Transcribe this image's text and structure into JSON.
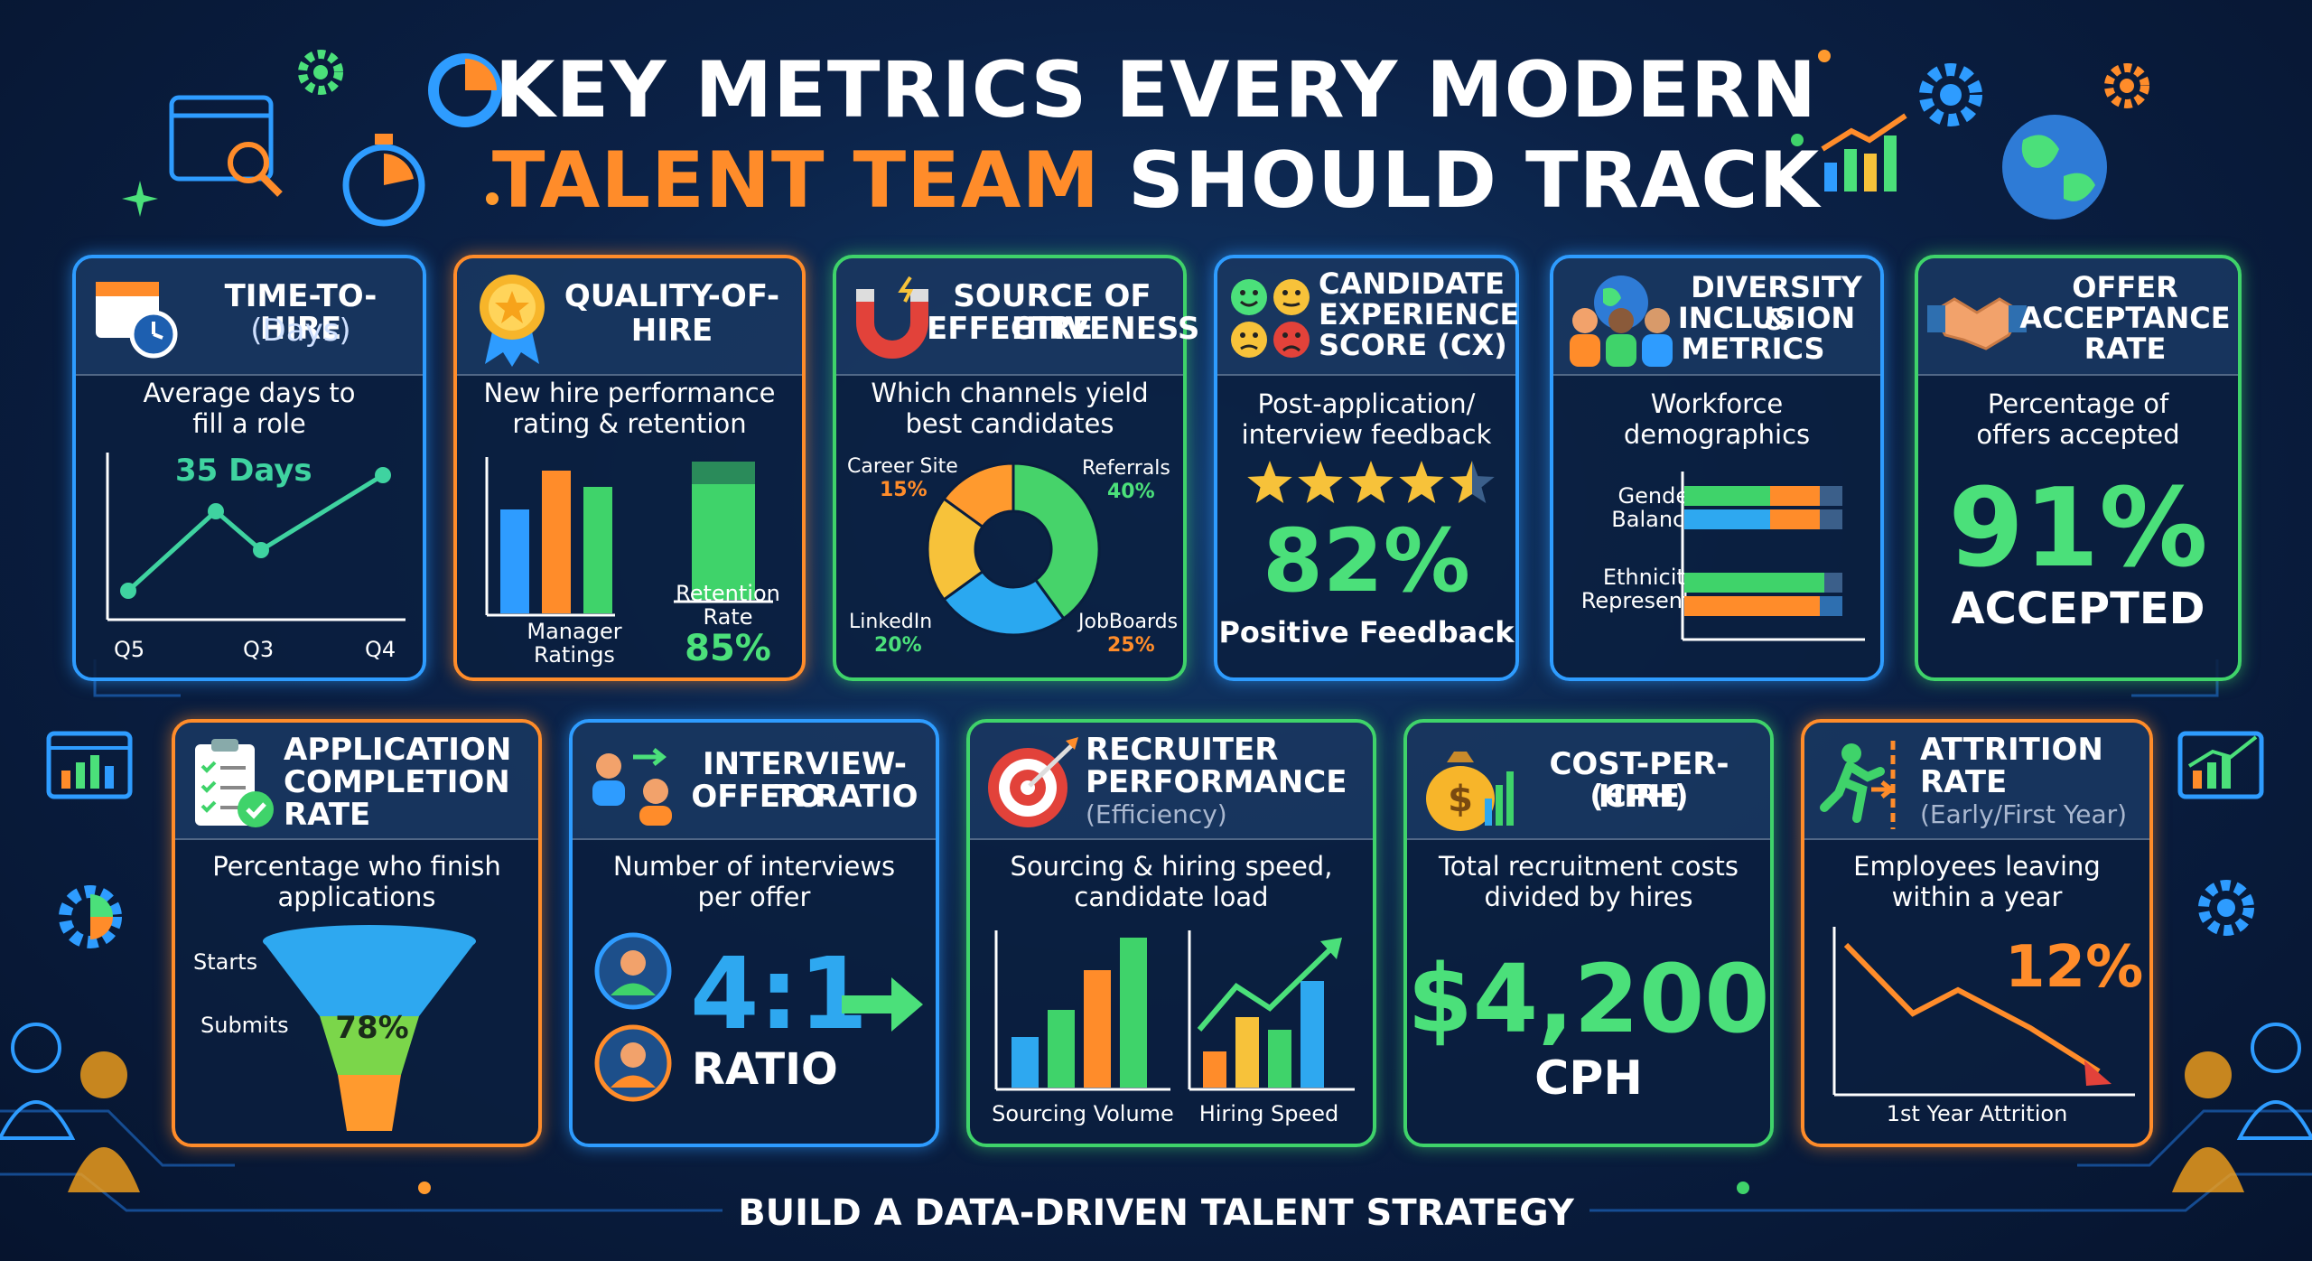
{
  "title": {
    "line1": "KEY METRICS EVERY MODERN",
    "line2_highlight": "TALENT TEAM",
    "line2_rest": "SHOULD TRACK"
  },
  "footer": "BUILD A DATA-DRIVEN TALENT STRATEGY",
  "colors": {
    "blue": "#2e9cff",
    "orange": "#ff8c2a",
    "green": "#3fd36a",
    "bg": "#0b2146"
  },
  "cards": {
    "time_to_hire": {
      "title_l1": "TIME-TO-HIRE",
      "title_l2": "(Days)",
      "desc_l1": "Average days to",
      "desc_l2": "fill a role",
      "callout": "35 Days",
      "x_labels": [
        "Q5",
        "Q3",
        "Q4"
      ],
      "icon": "calendar-clock-icon"
    },
    "quality_of_hire": {
      "title_l1": "QUALITY-OF-",
      "title_l2": "HIRE",
      "desc_l1": "New hire performance",
      "desc_l2": "rating & retention",
      "bar_label_l1": "Manager",
      "bar_label_l2": "Ratings",
      "retention_l1": "Retention",
      "retention_l2": "Rate",
      "retention_value": "85%",
      "icon": "award-medal-icon"
    },
    "source_of_hire": {
      "title_l1": "SOURCE OF HIRE",
      "title_l2": "EFFECTIVENESS",
      "desc_l1": "Which channels yield",
      "desc_l2": "best candidates",
      "icon": "magnet-icon",
      "slices": [
        {
          "name": "Career Site",
          "value": "15%",
          "color": "#ff9a2e"
        },
        {
          "name": "Referrals",
          "value": "40%",
          "color": "#46d36a"
        },
        {
          "name": "JobBoards",
          "value": "25%",
          "color": "#2aa8f0"
        },
        {
          "name": "LinkedIn",
          "value": "20%",
          "color": "#f7c23a"
        }
      ]
    },
    "candidate_experience": {
      "title_l1": "CANDIDATE",
      "title_l2": "EXPERIENCE",
      "title_l3": "SCORE (CX)",
      "desc_l1": "Post-application/",
      "desc_l2": "interview feedback",
      "stars": 4.5,
      "value": "82%",
      "label": "Positive Feedback",
      "icon": "emoji-faces-icon"
    },
    "diversity": {
      "title_l1": "DIVERSITY &",
      "title_l2": "INCLUSION",
      "title_l3": "METRICS",
      "desc_l1": "Workforce",
      "desc_l2": "demographics",
      "row1_l1": "Gender",
      "row1_l2": "Balance",
      "row2_l1": "Ethnicity",
      "row2_l2": "Represent.",
      "icon": "people-globe-icon"
    },
    "offer_acceptance": {
      "title_l1": "OFFER",
      "title_l2": "ACCEPTANCE",
      "title_l3": "RATE",
      "desc_l1": "Percentage of",
      "desc_l2": "offers accepted",
      "value": "91%",
      "label": "ACCEPTED",
      "icon": "handshake-icon"
    },
    "application_completion": {
      "title_l1": "APPLICATION",
      "title_l2": "COMPLETION",
      "title_l3": "RATE",
      "desc_l1": "Percentage who finish",
      "desc_l2": "applications",
      "starts": "Starts",
      "submits": "Submits",
      "value": "78%",
      "icon": "checklist-icon"
    },
    "interview_offer": {
      "title_l1": "INTERVIEW-TO-",
      "title_l2": "OFFER RATIO",
      "desc_l1": "Number of interviews",
      "desc_l2": "per offer",
      "value": "4:1",
      "label": "RATIO",
      "icon": "people-transfer-icon"
    },
    "recruiter_performance": {
      "title_l1": "RECRUITER",
      "title_l2": "PERFORMANCE",
      "title_l3": "(Efficiency)",
      "desc_l1": "Sourcing & hiring speed,",
      "desc_l2": "candidate load",
      "chart1": "Sourcing Volume",
      "chart2": "Hiring Speed",
      "icon": "target-icon"
    },
    "cost_per_hire": {
      "title_l1": "COST-PER-HIRE",
      "title_l2": "(CPH)",
      "desc_l1": "Total recruitment costs",
      "desc_l2": "divided by hires",
      "value": "$4,200",
      "label": "CPH",
      "icon": "money-bag-icon"
    },
    "attrition": {
      "title_l1": "ATTRITION",
      "title_l2": "RATE",
      "title_l3": "(Early/First Year)",
      "desc_l1": "Employees leaving",
      "desc_l2": "within a year",
      "value": "12%",
      "label": "1st Year Attrition",
      "icon": "running-exit-icon"
    }
  }
}
